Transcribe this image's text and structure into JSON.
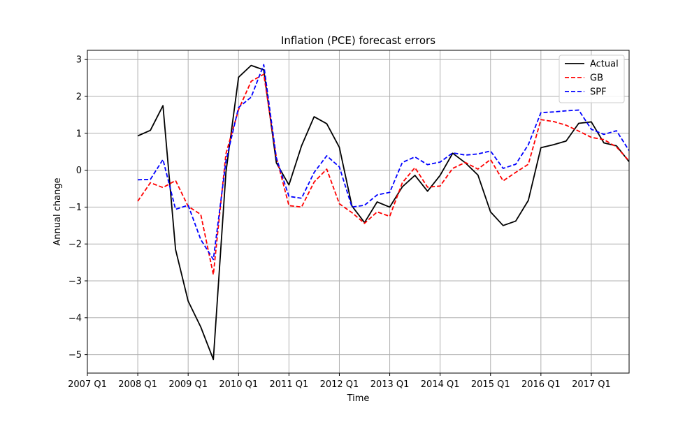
{
  "chart_data": {
    "type": "line",
    "title": "Inflation (PCE) forecast errors",
    "xlabel": "Time",
    "ylabel": "Annual change",
    "xlim": [
      2007.0,
      2017.75
    ],
    "ylim": [
      -5.5,
      3.25
    ],
    "grid": true,
    "legend_position": "top-right",
    "x_ticks": [
      {
        "value": 2007,
        "label": "2007 Q1"
      },
      {
        "value": 2008,
        "label": "2008 Q1"
      },
      {
        "value": 2009,
        "label": "2009 Q1"
      },
      {
        "value": 2010,
        "label": "2010 Q1"
      },
      {
        "value": 2011,
        "label": "2011 Q1"
      },
      {
        "value": 2012,
        "label": "2012 Q1"
      },
      {
        "value": 2013,
        "label": "2013 Q1"
      },
      {
        "value": 2014,
        "label": "2014 Q1"
      },
      {
        "value": 2015,
        "label": "2015 Q1"
      },
      {
        "value": 2016,
        "label": "2016 Q1"
      },
      {
        "value": 2017,
        "label": "2017 Q1"
      }
    ],
    "y_ticks": [
      {
        "value": 3,
        "label": "3"
      },
      {
        "value": 2,
        "label": "2"
      },
      {
        "value": 1,
        "label": "1"
      },
      {
        "value": 0,
        "label": "0"
      },
      {
        "value": -1,
        "label": "−1"
      },
      {
        "value": -2,
        "label": "−2"
      },
      {
        "value": -3,
        "label": "−3"
      },
      {
        "value": -4,
        "label": "−4"
      },
      {
        "value": -5,
        "label": "−5"
      }
    ],
    "x": [
      2008.0,
      2008.25,
      2008.5,
      2008.75,
      2009.0,
      2009.25,
      2009.5,
      2009.75,
      2010.0,
      2010.25,
      2010.5,
      2010.75,
      2011.0,
      2011.25,
      2011.5,
      2011.75,
      2012.0,
      2012.25,
      2012.5,
      2012.75,
      2013.0,
      2013.25,
      2013.5,
      2013.75,
      2014.0,
      2014.25,
      2014.5,
      2014.75,
      2015.0,
      2015.25,
      2015.5,
      2015.75,
      2016.0,
      2016.25,
      2016.5,
      2016.75,
      2017.0,
      2017.25,
      2017.5,
      2017.75
    ],
    "series": [
      {
        "name": "Actual",
        "color": "#000000",
        "dash": "solid",
        "values": [
          0.93,
          1.08,
          1.75,
          -2.15,
          -3.55,
          -4.25,
          -5.13,
          -0.05,
          2.52,
          2.84,
          2.72,
          0.2,
          -0.4,
          0.66,
          1.45,
          1.26,
          0.62,
          -0.97,
          -1.42,
          -0.86,
          -1.0,
          -0.45,
          -0.14,
          -0.57,
          -0.14,
          0.46,
          0.2,
          -0.13,
          -1.13,
          -1.5,
          -1.38,
          -0.82,
          0.61,
          0.69,
          0.79,
          1.27,
          1.31,
          0.74,
          0.66,
          0.23
        ]
      },
      {
        "name": "GB",
        "color": "#ff0000",
        "dash": "dashed",
        "values": [
          -0.84,
          -0.34,
          -0.47,
          -0.28,
          -0.98,
          -1.2,
          -2.83,
          0.45,
          1.64,
          2.41,
          2.6,
          0.35,
          -0.96,
          -1.0,
          -0.32,
          0.03,
          -0.91,
          -1.15,
          -1.44,
          -1.13,
          -1.25,
          -0.34,
          0.07,
          -0.46,
          -0.43,
          0.05,
          0.21,
          0.03,
          0.29,
          -0.29,
          -0.06,
          0.16,
          1.37,
          1.32,
          1.22,
          1.06,
          0.89,
          0.83,
          0.63,
          0.25
        ]
      },
      {
        "name": "SPF",
        "color": "#0000ff",
        "dash": "dashed",
        "values": [
          -0.26,
          -0.25,
          0.29,
          -1.06,
          -0.95,
          -1.88,
          -2.42,
          0.25,
          1.7,
          1.98,
          2.86,
          0.33,
          -0.71,
          -0.76,
          -0.06,
          0.39,
          0.09,
          -1.0,
          -0.95,
          -0.67,
          -0.6,
          0.21,
          0.36,
          0.15,
          0.22,
          0.47,
          0.41,
          0.44,
          0.52,
          0.05,
          0.16,
          0.69,
          1.56,
          1.58,
          1.61,
          1.63,
          1.11,
          0.97,
          1.07,
          0.53
        ]
      }
    ]
  }
}
